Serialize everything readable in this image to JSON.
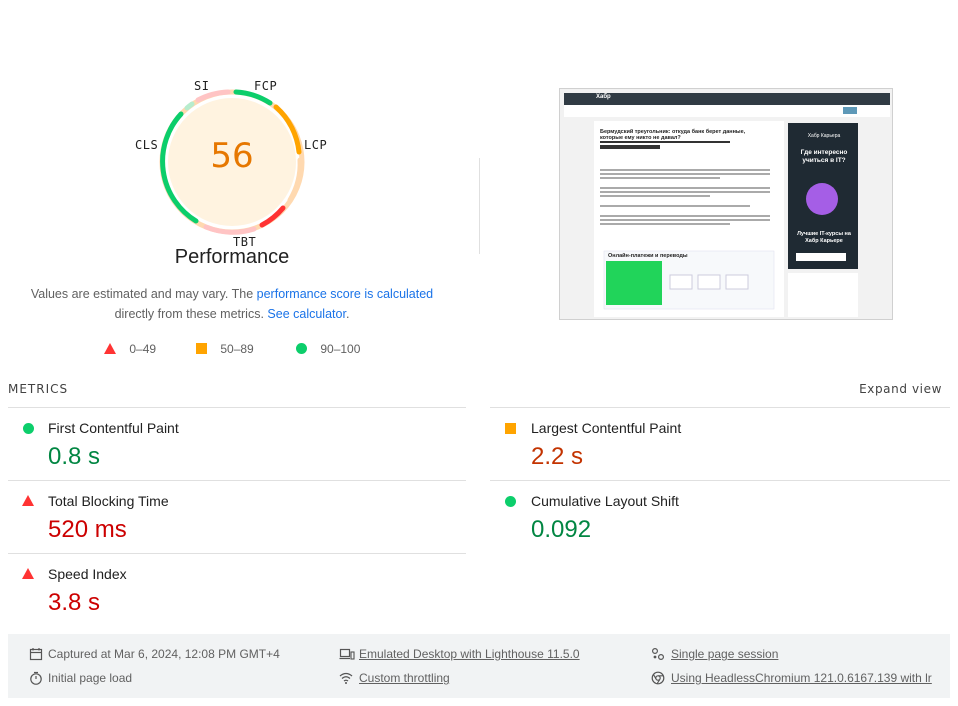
{
  "score": {
    "value": "56",
    "title": "Performance",
    "labels": {
      "si": "SI",
      "fcp": "FCP",
      "lcp": "LCP",
      "tbt": "TBT",
      "cls": "CLS"
    },
    "color": "#e67700"
  },
  "description": {
    "part1": "Values are estimated and may vary. The ",
    "link1": "performance score is calculated",
    "part2": " directly from these metrics. ",
    "link2": "See calculator",
    "part3": "."
  },
  "legend": {
    "poor": "0–49",
    "average": "50–89",
    "good": "90–100"
  },
  "metrics_section": {
    "title": "METRICS",
    "expand": "Expand view"
  },
  "metrics": {
    "fcp": {
      "label": "First Contentful Paint",
      "value": "0.8 s",
      "status": "good"
    },
    "lcp": {
      "label": "Largest Contentful Paint",
      "value": "2.2 s",
      "status": "average"
    },
    "tbt": {
      "label": "Total Blocking Time",
      "value": "520 ms",
      "status": "poor"
    },
    "cls": {
      "label": "Cumulative Layout Shift",
      "value": "0.092",
      "status": "good"
    },
    "si": {
      "label": "Speed Index",
      "value": "3.8 s",
      "status": "poor"
    }
  },
  "colors": {
    "good": "#018642",
    "good_icon": "#0cce6b",
    "average": "#c33300",
    "average_icon": "#ffa400",
    "poor": "#cc0000",
    "poor_icon": "#ff3333"
  },
  "footer": {
    "captured": "Captured at Mar 6, 2024, 12:08 PM GMT+4",
    "initial": "Initial page load",
    "emulated": "Emulated Desktop with Lighthouse 11.5.0",
    "throttling": "Custom throttling",
    "session": "Single page session",
    "browser": "Using HeadlessChromium 121.0.6167.139 with lr"
  },
  "thumbnail": {
    "logo": "Хабр",
    "article_title": "Бермудский треугольник: откуда банк берет данные, которые ему никто не давал?",
    "ad_brand": "Хабр Карьера",
    "ad_headline": "Где интересно учиться в IT?",
    "ad_footer": "Лучшие IT-курсы на Хабр Карьере",
    "widget_title": "Онлайн-платежи и переводы"
  }
}
